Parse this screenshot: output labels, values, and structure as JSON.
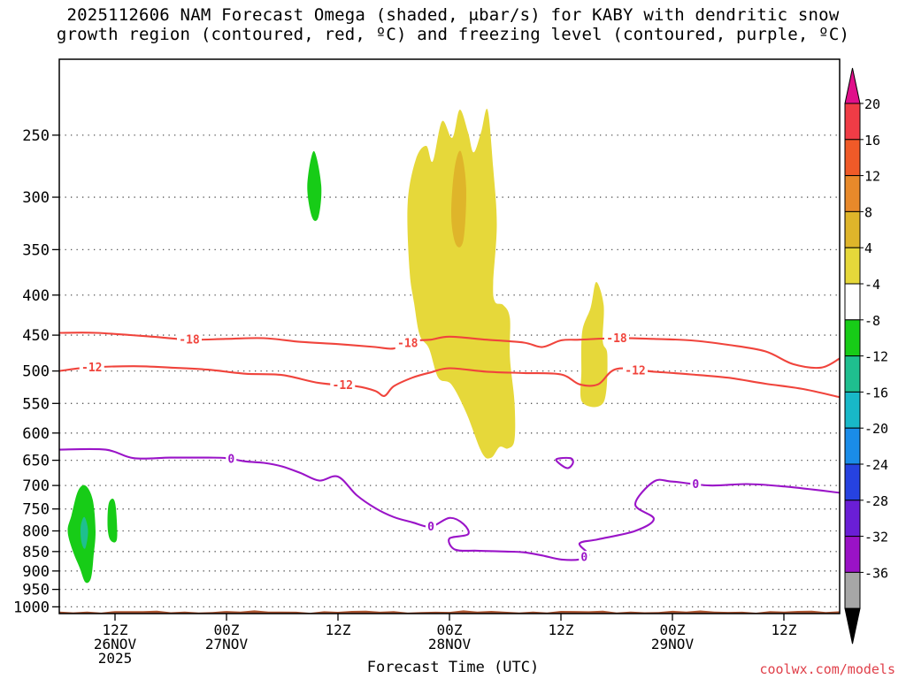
{
  "chart_data": {
    "type": "time-height cross section",
    "title_line1": "2025112606 NAM Forecast Omega (shaded, μbar/s) for KABY with dendritic snow",
    "title_line2": "growth region (contoured, red, ºC) and freezing level (contoured, purple, ºC)",
    "xlabel": "Forecast Time (UTC)",
    "credit": "coolwx.com/models",
    "y_axis": {
      "variable": "pressure (mb)",
      "inverted": true,
      "range": [
        1020,
        200
      ],
      "ticks": [
        250,
        300,
        350,
        400,
        450,
        500,
        550,
        600,
        650,
        700,
        750,
        800,
        850,
        900,
        950,
        1000
      ]
    },
    "x_axis": {
      "variable": "forecast hour",
      "range": [
        0,
        84
      ],
      "ticks": [
        {
          "hour": 6,
          "lines": [
            "12Z",
            "26NOV",
            "2025"
          ]
        },
        {
          "hour": 18,
          "lines": [
            "00Z",
            "27NOV"
          ]
        },
        {
          "hour": 30,
          "lines": [
            "12Z"
          ]
        },
        {
          "hour": 42,
          "lines": [
            "00Z",
            "28NOV"
          ]
        },
        {
          "hour": 54,
          "lines": [
            "12Z"
          ]
        },
        {
          "hour": 66,
          "lines": [
            "00Z",
            "29NOV"
          ]
        },
        {
          "hour": 78,
          "lines": [
            "12Z"
          ]
        }
      ]
    },
    "colorbar": {
      "labels": [
        "20",
        "16",
        "12",
        "8",
        "4",
        "-4",
        "-8",
        "-12",
        "-16",
        "-20",
        "-24",
        "-28",
        "-32",
        "-36"
      ],
      "bands": [
        {
          "from": 16,
          "to": 20,
          "color": "#f03c46"
        },
        {
          "from": 12,
          "to": 16,
          "color": "#f05a28"
        },
        {
          "from": 8,
          "to": 12,
          "color": "#e8892a"
        },
        {
          "from": 4,
          "to": 8,
          "color": "#dfb52a"
        },
        {
          "from": -4,
          "to": 4,
          "color": "#e6d83a"
        },
        {
          "from": -8,
          "to": -4,
          "color": "#ffffff"
        },
        {
          "from": -12,
          "to": -8,
          "color": "#17cc17"
        },
        {
          "from": -16,
          "to": -12,
          "color": "#1fbf8f"
        },
        {
          "from": -20,
          "to": -16,
          "color": "#18b8c8"
        },
        {
          "from": -24,
          "to": -20,
          "color": "#1a8ce8"
        },
        {
          "from": -28,
          "to": -24,
          "color": "#2642e0"
        },
        {
          "from": -32,
          "to": -28,
          "color": "#6a1ed6"
        },
        {
          "from": -36,
          "to": -32,
          "color": "#9a12c6"
        },
        {
          "from": -40,
          "to": -36,
          "color": "#a6a6a6"
        }
      ],
      "top_arrow_color": "#e0108a",
      "bottom_arrow_color": "#000000"
    },
    "omega_regions": [
      {
        "name": "upward motion plume 28NOV",
        "color": "#e6d83a",
        "points": [
          [
            37.5,
            305
          ],
          [
            38.4,
            268
          ],
          [
            39.5,
            258
          ],
          [
            40.2,
            270
          ],
          [
            41.2,
            240
          ],
          [
            42.3,
            252
          ],
          [
            43.1,
            232
          ],
          [
            44,
            248
          ],
          [
            44.6,
            263
          ],
          [
            45.4,
            248
          ],
          [
            46.1,
            232
          ],
          [
            46.7,
            275
          ],
          [
            47.1,
            325
          ],
          [
            46.7,
            386
          ],
          [
            46.9,
            408
          ],
          [
            47.8,
            412
          ],
          [
            48.5,
            428
          ],
          [
            48.5,
            480
          ],
          [
            49,
            548
          ],
          [
            49,
            612
          ],
          [
            48.3,
            628
          ],
          [
            47.4,
            625
          ],
          [
            46.5,
            645
          ],
          [
            45.5,
            636
          ],
          [
            43.8,
            565
          ],
          [
            42.2,
            520
          ],
          [
            40.8,
            510
          ],
          [
            39.8,
            468
          ],
          [
            38.8,
            450
          ],
          [
            38.2,
            410
          ],
          [
            37.7,
            372
          ]
        ]
      },
      {
        "name": "omega max core",
        "color": "#dfb52a",
        "points": [
          [
            42.5,
            278
          ],
          [
            43.2,
            262
          ],
          [
            43.8,
            292
          ],
          [
            43.5,
            340
          ],
          [
            42.7,
            345
          ],
          [
            42.2,
            318
          ]
        ]
      },
      {
        "name": "small plume 29NOV",
        "color": "#e6d83a",
        "points": [
          [
            56.3,
            445
          ],
          [
            57.2,
            415
          ],
          [
            57.8,
            385
          ],
          [
            58.6,
            412
          ],
          [
            58.5,
            458
          ],
          [
            59,
            478
          ],
          [
            58.6,
            548
          ],
          [
            56.3,
            548
          ],
          [
            56.2,
            500
          ]
        ]
      },
      {
        "name": "sinking column 300mb",
        "color": "#17cc17",
        "points": [
          [
            26.7,
            290
          ],
          [
            27.4,
            262
          ],
          [
            28.2,
            290
          ],
          [
            27.9,
            318
          ],
          [
            27.2,
            318
          ]
        ]
      },
      {
        "name": "sinking column low levels",
        "color": "#17cc17",
        "points": [
          [
            0.9,
            800
          ],
          [
            1.3,
            765
          ],
          [
            2,
            712
          ],
          [
            2.8,
            700
          ],
          [
            3.6,
            730
          ],
          [
            3.9,
            800
          ],
          [
            3.7,
            860
          ],
          [
            3.4,
            920
          ],
          [
            2.8,
            930
          ],
          [
            2.2,
            892
          ],
          [
            1.4,
            845
          ]
        ]
      },
      {
        "name": "sinking column low levels 2",
        "color": "#17cc17",
        "points": [
          [
            5.3,
            740
          ],
          [
            5.8,
            728
          ],
          [
            6.1,
            750
          ],
          [
            6.2,
            820
          ],
          [
            5.5,
            822
          ],
          [
            5.2,
            790
          ]
        ]
      },
      {
        "name": "sinking core low levels",
        "color": "#1fbf8f",
        "points": [
          [
            2.3,
            790
          ],
          [
            2.7,
            768
          ],
          [
            3.1,
            800
          ],
          [
            2.8,
            842
          ],
          [
            2.4,
            828
          ]
        ]
      }
    ],
    "contours": [
      {
        "label": "-18",
        "color": "#f0443c",
        "points": [
          [
            0,
            447
          ],
          [
            4,
            447
          ],
          [
            10,
            452
          ],
          [
            14,
            456
          ],
          [
            18,
            455
          ],
          [
            22,
            454
          ],
          [
            26,
            459
          ],
          [
            30,
            462
          ],
          [
            34,
            466
          ],
          [
            36,
            468
          ],
          [
            38,
            458
          ],
          [
            40,
            456
          ],
          [
            42,
            452
          ],
          [
            46,
            456
          ],
          [
            50,
            460
          ],
          [
            52,
            466
          ],
          [
            54,
            457
          ],
          [
            56,
            456
          ],
          [
            60,
            454
          ],
          [
            64,
            455
          ],
          [
            68,
            457
          ],
          [
            72,
            463
          ],
          [
            76,
            472
          ],
          [
            79,
            490
          ],
          [
            82,
            495
          ],
          [
            84,
            482
          ]
        ],
        "label_hours": [
          14,
          37.5,
          60
        ]
      },
      {
        "label": "-12",
        "color": "#f0443c",
        "points": [
          [
            0,
            500
          ],
          [
            3,
            495
          ],
          [
            8,
            493
          ],
          [
            12,
            495
          ],
          [
            16,
            498
          ],
          [
            20,
            504
          ],
          [
            24,
            506
          ],
          [
            28,
            518
          ],
          [
            32,
            523
          ],
          [
            34,
            530
          ],
          [
            35,
            538
          ],
          [
            36,
            523
          ],
          [
            38,
            510
          ],
          [
            40,
            502
          ],
          [
            42,
            496
          ],
          [
            46,
            501
          ],
          [
            50,
            503
          ],
          [
            54,
            505
          ],
          [
            56,
            520
          ],
          [
            58,
            520
          ],
          [
            60,
            497
          ],
          [
            64,
            501
          ],
          [
            68,
            505
          ],
          [
            72,
            510
          ],
          [
            76,
            519
          ],
          [
            80,
            527
          ],
          [
            84,
            540
          ]
        ],
        "label_hours": [
          3.5,
          30.5,
          62
        ]
      },
      {
        "label": "0",
        "color": "#9a14c8",
        "points": [
          [
            0,
            630
          ],
          [
            5,
            630
          ],
          [
            8,
            646
          ],
          [
            12,
            645
          ],
          [
            16,
            645
          ],
          [
            18,
            646
          ],
          [
            20,
            652
          ],
          [
            22,
            655
          ],
          [
            24,
            662
          ],
          [
            26,
            675
          ],
          [
            28,
            690
          ],
          [
            30,
            682
          ],
          [
            32,
            720
          ],
          [
            34,
            748
          ],
          [
            36,
            768
          ],
          [
            38,
            780
          ],
          [
            40,
            790
          ],
          [
            42,
            770
          ],
          [
            43.5,
            784
          ],
          [
            44,
            808
          ],
          [
            42,
            818
          ],
          [
            42.6,
            845
          ],
          [
            45,
            848
          ],
          [
            48,
            850
          ],
          [
            50,
            852
          ],
          [
            52,
            860
          ],
          [
            54,
            870
          ],
          [
            56,
            870
          ],
          [
            57,
            858
          ],
          [
            56,
            830
          ],
          [
            58,
            820
          ],
          [
            62,
            800
          ],
          [
            64,
            772
          ],
          [
            62,
            740
          ],
          [
            64,
            692
          ],
          [
            66,
            692
          ],
          [
            70,
            700
          ],
          [
            74,
            697
          ],
          [
            78,
            702
          ],
          [
            84,
            715
          ]
        ],
        "label_hours": [
          18.5,
          40,
          56.5,
          68.5
        ]
      }
    ],
    "closed_contours": [
      {
        "label": "0",
        "color": "#9a14c8",
        "points": [
          [
            53.5,
            648
          ],
          [
            55,
            646
          ],
          [
            55.3,
            655
          ],
          [
            54.8,
            665
          ],
          [
            54.1,
            660
          ]
        ]
      }
    ],
    "terrain": {
      "color": "#a8522e",
      "top_pressure": 1010
    }
  }
}
